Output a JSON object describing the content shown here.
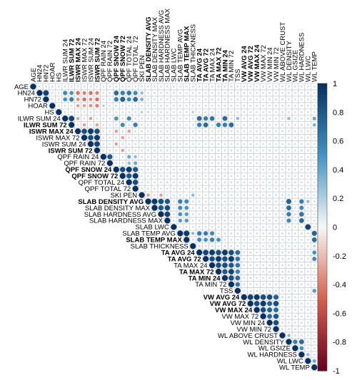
{
  "chart_data": {
    "type": "heatmap",
    "subtype": "upper-triangle correlation matrix (circles)",
    "variables": [
      {
        "name": "AGE",
        "bold": false
      },
      {
        "name": "HN24",
        "bold": false
      },
      {
        "name": "HN72",
        "bold": false
      },
      {
        "name": "HOAR",
        "bold": false
      },
      {
        "name": "HS",
        "bold": false
      },
      {
        "name": "ILWR SUM 24",
        "bold": false
      },
      {
        "name": "ILWR SUM 72",
        "bold": true
      },
      {
        "name": "ISWR MAX 24",
        "bold": true
      },
      {
        "name": "ISWR MAX 72",
        "bold": false
      },
      {
        "name": "ISWR SUM 24",
        "bold": false
      },
      {
        "name": "ISWR SUM 72",
        "bold": true
      },
      {
        "name": "QPF RAIN 24",
        "bold": false
      },
      {
        "name": "QPF RAIN 72",
        "bold": false
      },
      {
        "name": "QPF SNOW 24",
        "bold": true
      },
      {
        "name": "QPF SNOW 72",
        "bold": true
      },
      {
        "name": "QPF TOTAL 24",
        "bold": false
      },
      {
        "name": "QPF TOTAL 72",
        "bold": false
      },
      {
        "name": "SKI PEN",
        "bold": false
      },
      {
        "name": "SLAB DENSITY AVG",
        "bold": true
      },
      {
        "name": "SLAB DENSITY MAX",
        "bold": false
      },
      {
        "name": "SLAB HARDNESS AVG",
        "bold": false
      },
      {
        "name": "SLAB HARDNESS MAX",
        "bold": false
      },
      {
        "name": "SLAB LWC",
        "bold": false
      },
      {
        "name": "SLAB TEMP AVG",
        "bold": false
      },
      {
        "name": "SLAB TEMP MAX",
        "bold": true
      },
      {
        "name": "SLAB THICKNESS",
        "bold": false
      },
      {
        "name": "TA AVG 24",
        "bold": true
      },
      {
        "name": "TA AVG 72",
        "bold": true
      },
      {
        "name": "TA MAX 24",
        "bold": false
      },
      {
        "name": "TA MAX 72",
        "bold": true
      },
      {
        "name": "TA MIN 24",
        "bold": true
      },
      {
        "name": "TA MIN 72",
        "bold": false
      },
      {
        "name": "TSS",
        "bold": false
      },
      {
        "name": "VW AVG 24",
        "bold": true
      },
      {
        "name": "VW AVG 72",
        "bold": true
      },
      {
        "name": "VW MAX 24",
        "bold": true
      },
      {
        "name": "VW MAX 72",
        "bold": false
      },
      {
        "name": "VW MIN 24",
        "bold": false
      },
      {
        "name": "VW MIN 72",
        "bold": false
      },
      {
        "name": "WL ABOVE CRUST",
        "bold": false
      },
      {
        "name": "WL DENSITY",
        "bold": false
      },
      {
        "name": "WL GSIZE",
        "bold": false
      },
      {
        "name": "WL HARDNESS",
        "bold": false
      },
      {
        "name": "WL LWC",
        "bold": false
      },
      {
        "name": "WL TEMP",
        "bold": false
      }
    ],
    "correlations": [
      [
        3,
        9,
        -0.35
      ],
      [
        3,
        10,
        -0.4
      ],
      [
        3,
        8,
        -0.3
      ],
      [
        3,
        7,
        -0.3
      ],
      [
        3,
        11,
        0.2
      ],
      [
        1,
        2,
        0.9
      ],
      [
        1,
        5,
        0.55
      ],
      [
        1,
        6,
        0.5
      ],
      [
        1,
        7,
        -0.45
      ],
      [
        1,
        8,
        -0.4
      ],
      [
        1,
        9,
        -0.45
      ],
      [
        1,
        10,
        -0.4
      ],
      [
        1,
        13,
        0.7
      ],
      [
        1,
        14,
        0.6
      ],
      [
        1,
        15,
        0.65
      ],
      [
        1,
        16,
        0.55
      ],
      [
        1,
        17,
        0.3
      ],
      [
        2,
        5,
        0.5
      ],
      [
        2,
        6,
        0.6
      ],
      [
        2,
        7,
        -0.35
      ],
      [
        2,
        8,
        -0.45
      ],
      [
        2,
        9,
        -0.35
      ],
      [
        2,
        10,
        -0.45
      ],
      [
        2,
        13,
        0.6
      ],
      [
        2,
        14,
        0.75
      ],
      [
        2,
        15,
        0.55
      ],
      [
        2,
        16,
        0.7
      ],
      [
        2,
        17,
        0.35
      ],
      [
        4,
        17,
        0.2
      ],
      [
        4,
        18,
        0.15
      ],
      [
        4,
        25,
        0.2
      ],
      [
        5,
        6,
        0.9
      ],
      [
        5,
        7,
        -0.3
      ],
      [
        5,
        9,
        -0.3
      ],
      [
        5,
        13,
        0.5
      ],
      [
        5,
        15,
        0.55
      ],
      [
        5,
        26,
        0.7
      ],
      [
        5,
        27,
        0.6
      ],
      [
        5,
        28,
        0.65
      ],
      [
        5,
        30,
        0.7
      ],
      [
        5,
        32,
        0.3
      ],
      [
        5,
        40,
        0.3
      ],
      [
        5,
        44,
        0.4
      ],
      [
        6,
        8,
        -0.3
      ],
      [
        6,
        10,
        -0.3
      ],
      [
        6,
        14,
        0.55
      ],
      [
        6,
        16,
        0.6
      ],
      [
        6,
        26,
        0.6
      ],
      [
        6,
        27,
        0.7
      ],
      [
        6,
        29,
        0.6
      ],
      [
        6,
        30,
        0.6
      ],
      [
        6,
        31,
        0.7
      ],
      [
        6,
        44,
        0.35
      ],
      [
        7,
        8,
        0.85
      ],
      [
        7,
        9,
        0.95
      ],
      [
        7,
        10,
        0.85
      ],
      [
        7,
        13,
        -0.3
      ],
      [
        7,
        15,
        -0.3
      ],
      [
        8,
        9,
        0.85
      ],
      [
        8,
        10,
        0.95
      ],
      [
        8,
        14,
        -0.3
      ],
      [
        9,
        10,
        0.9
      ],
      [
        9,
        13,
        -0.3
      ],
      [
        10,
        14,
        -0.3
      ],
      [
        11,
        12,
        0.8
      ],
      [
        11,
        15,
        0.4
      ],
      [
        11,
        16,
        0.3
      ],
      [
        12,
        15,
        0.3
      ],
      [
        12,
        16,
        0.4
      ],
      [
        13,
        14,
        0.85
      ],
      [
        13,
        15,
        0.95
      ],
      [
        13,
        16,
        0.8
      ],
      [
        14,
        15,
        0.8
      ],
      [
        14,
        16,
        0.95
      ],
      [
        15,
        16,
        0.85
      ],
      [
        17,
        18,
        -0.3
      ],
      [
        17,
        20,
        -0.3
      ],
      [
        17,
        25,
        0.3
      ],
      [
        18,
        19,
        0.95
      ],
      [
        18,
        20,
        0.85
      ],
      [
        18,
        21,
        0.8
      ],
      [
        18,
        23,
        0.6
      ],
      [
        18,
        24,
        0.55
      ],
      [
        18,
        40,
        0.75
      ],
      [
        18,
        42,
        0.6
      ],
      [
        18,
        43,
        0.3
      ],
      [
        19,
        20,
        0.8
      ],
      [
        19,
        21,
        0.85
      ],
      [
        19,
        23,
        0.55
      ],
      [
        19,
        24,
        0.5
      ],
      [
        19,
        40,
        0.7
      ],
      [
        19,
        42,
        0.55
      ],
      [
        20,
        21,
        0.9
      ],
      [
        20,
        23,
        0.5
      ],
      [
        20,
        24,
        0.45
      ],
      [
        20,
        40,
        0.6
      ],
      [
        20,
        42,
        0.65
      ],
      [
        21,
        23,
        0.45
      ],
      [
        21,
        24,
        0.45
      ],
      [
        21,
        40,
        0.55
      ],
      [
        21,
        42,
        0.7
      ],
      [
        22,
        43,
        0.9
      ],
      [
        23,
        24,
        0.95
      ],
      [
        23,
        25,
        0.3
      ],
      [
        23,
        26,
        0.6
      ],
      [
        23,
        27,
        0.6
      ],
      [
        23,
        28,
        0.55
      ],
      [
        23,
        44,
        0.75
      ],
      [
        24,
        26,
        0.55
      ],
      [
        24,
        27,
        0.5
      ],
      [
        24,
        28,
        0.6
      ],
      [
        24,
        29,
        0.5
      ],
      [
        24,
        44,
        0.7
      ],
      [
        25,
        44,
        0.2
      ],
      [
        26,
        27,
        0.9
      ],
      [
        26,
        28,
        0.95
      ],
      [
        26,
        29,
        0.85
      ],
      [
        26,
        30,
        0.95
      ],
      [
        26,
        31,
        0.85
      ],
      [
        26,
        32,
        0.7
      ],
      [
        26,
        44,
        0.5
      ],
      [
        27,
        28,
        0.85
      ],
      [
        27,
        29,
        0.95
      ],
      [
        27,
        30,
        0.85
      ],
      [
        27,
        31,
        0.95
      ],
      [
        27,
        32,
        0.65
      ],
      [
        27,
        44,
        0.55
      ],
      [
        28,
        29,
        0.85
      ],
      [
        28,
        30,
        0.85
      ],
      [
        28,
        31,
        0.8
      ],
      [
        28,
        32,
        0.65
      ],
      [
        29,
        30,
        0.8
      ],
      [
        29,
        31,
        0.9
      ],
      [
        29,
        32,
        0.6
      ],
      [
        30,
        31,
        0.85
      ],
      [
        30,
        32,
        0.7
      ],
      [
        31,
        32,
        0.65
      ],
      [
        32,
        44,
        0.45
      ],
      [
        33,
        34,
        0.9
      ],
      [
        33,
        35,
        0.95
      ],
      [
        33,
        36,
        0.85
      ],
      [
        33,
        37,
        0.85
      ],
      [
        33,
        38,
        0.75
      ],
      [
        34,
        35,
        0.85
      ],
      [
        34,
        36,
        0.95
      ],
      [
        34,
        37,
        0.75
      ],
      [
        34,
        38,
        0.85
      ],
      [
        35,
        36,
        0.85
      ],
      [
        35,
        37,
        0.75
      ],
      [
        35,
        38,
        0.7
      ],
      [
        36,
        37,
        0.7
      ],
      [
        36,
        38,
        0.8
      ],
      [
        37,
        38,
        0.85
      ],
      [
        39,
        40,
        0.3
      ],
      [
        40,
        41,
        0.6
      ],
      [
        40,
        42,
        0.7
      ],
      [
        41,
        42,
        0.5
      ],
      [
        42,
        43,
        0.3
      ],
      [
        43,
        44,
        0.4
      ]
    ],
    "default_weak_correlation": 0.12,
    "legend_ticks": [
      "1",
      "0.8",
      "0.6",
      "0.4",
      "0.2",
      "0",
      "-0.2",
      "-0.4",
      "-0.6",
      "-0.8",
      "-1"
    ],
    "legend_range": [
      -1,
      1
    ],
    "legend_placement": "right",
    "colors": {
      "positive_strong": "#053061",
      "positive_mid": "#4393c3",
      "neutral": "#f7f7f7",
      "negative_mid": "#d6604d",
      "negative_strong": "#67001f",
      "grid": "#c8c8c8"
    }
  }
}
